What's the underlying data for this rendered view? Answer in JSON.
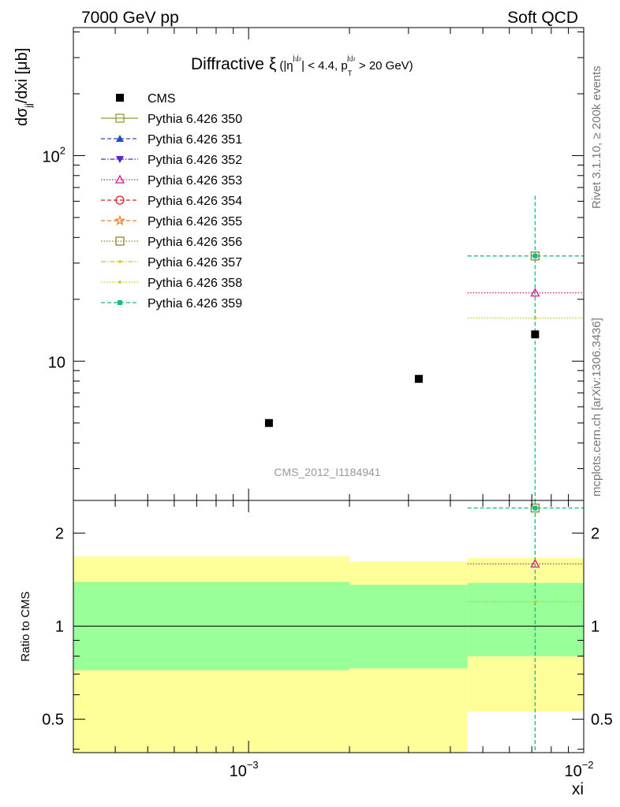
{
  "header": {
    "left": "7000 GeV pp",
    "right": "Soft QCD"
  },
  "side": {
    "rivet": "Rivet 3.1.10, ≥ 200k events",
    "mcplots": "mcplots.cern.ch [arXiv:1306.3436]"
  },
  "chart_data": [
    {
      "type": "scatter",
      "title": {
        "main": "Diffractive",
        "xi": "ξ",
        "open": "(|η",
        "eta_sup": "j₁j₂",
        "mid": "| < 4.4, p",
        "pt_sub": "T",
        "pt_sup": "j₁j₂",
        "end": " > 20 GeV)"
      },
      "ylabel": {
        "d": "dσ",
        "sub": "jj",
        "rest": "/dxi [μb]"
      },
      "xscale": "log",
      "yscale": "log",
      "xlim": [
        0.0003,
        0.01
      ],
      "ylim": [
        2.1,
        420
      ],
      "yticks": [
        {
          "value": 100,
          "base": "10",
          "exp": "2"
        },
        {
          "value": 10,
          "base": "10",
          "exp": ""
        }
      ],
      "watermark": "CMS_2012_I1184941",
      "legend_position": "top-left",
      "series": [
        {
          "name": "CMS",
          "marker": "filled-square",
          "color": "#000000",
          "style": "none",
          "points": [
            {
              "x": 0.00115,
              "y": 5.0
            },
            {
              "x": 0.00322,
              "y": 8.2
            },
            {
              "x": 0.00716,
              "y": 13.5
            }
          ]
        },
        {
          "name": "Pythia 6.426 350",
          "marker": "open-square",
          "color": "#999933",
          "style": "solid",
          "points": []
        },
        {
          "name": "Pythia 6.426 351",
          "marker": "filled-triangle-up",
          "color": "#1f4fbf",
          "style": "dashed",
          "points": []
        },
        {
          "name": "Pythia 6.426 352",
          "marker": "filled-triangle-down",
          "color": "#5522cc",
          "style": "dashdot",
          "points": []
        },
        {
          "name": "Pythia 6.426 353",
          "marker": "open-triangle-up",
          "color": "#cc2288",
          "style": "dotted",
          "points": [
            {
              "x": 0.00716,
              "y": 21.5,
              "xlo": 0.0045,
              "xhi": 0.01
            }
          ]
        },
        {
          "name": "Pythia 6.426 354",
          "marker": "open-circle",
          "color": "#dd2222",
          "style": "dashed",
          "points": []
        },
        {
          "name": "Pythia 6.426 355",
          "marker": "open-star",
          "color": "#ee7722",
          "style": "dashed",
          "points": []
        },
        {
          "name": "Pythia 6.426 356",
          "marker": "open-square",
          "color": "#888822",
          "style": "dotted",
          "points": []
        },
        {
          "name": "Pythia 6.426 357",
          "marker": "small-dot",
          "color": "#cccc00",
          "style": "dashdot",
          "points": []
        },
        {
          "name": "Pythia 6.426 358",
          "marker": "small-dot",
          "color": "#bbcc22",
          "style": "dotted",
          "points": [
            {
              "x": 0.00716,
              "y": 16.2,
              "xlo": 0.0045,
              "xhi": 0.01
            }
          ]
        },
        {
          "name": "Pythia 6.426 359",
          "marker": "filled-square-small",
          "color": "#11bb88",
          "style": "dashed",
          "points": [
            {
              "x": 0.00716,
              "y": 32.5,
              "xlo": 0.0045,
              "xhi": 0.01,
              "ylo": 0.5,
              "yhi": 65
            }
          ]
        }
      ]
    },
    {
      "type": "scatter",
      "ylabel": "Ratio to CMS",
      "xlabel": "xi",
      "xscale": "log",
      "yscale": "log",
      "xlim": [
        0.0003,
        0.01
      ],
      "ylim": [
        0.39,
        2.55
      ],
      "yticks": [
        {
          "value": 2,
          "label": "2"
        },
        {
          "value": 1,
          "label": "1"
        },
        {
          "value": 0.5,
          "label": "0.5"
        }
      ],
      "xticks": [
        {
          "value": 0.001,
          "base": "10",
          "exp": "−3"
        },
        {
          "value": 0.01,
          "base": "10",
          "exp": "−2"
        }
      ],
      "bands": [
        {
          "xlo": 0.0003,
          "xhi": 0.002,
          "yellow": [
            0.3,
            1.68
          ],
          "green": [
            0.72,
            1.39
          ]
        },
        {
          "xlo": 0.002,
          "xhi": 0.0045,
          "yellow": [
            0.3,
            1.62
          ],
          "green": [
            0.73,
            1.36
          ]
        },
        {
          "xlo": 0.0045,
          "xhi": 0.01,
          "yellow": [
            0.53,
            1.66
          ],
          "green": [
            0.8,
            1.38
          ]
        }
      ],
      "ratios": [
        {
          "series": "Pythia 6.426 353",
          "x": 0.00716,
          "y": 1.59,
          "xlo": 0.0045,
          "xhi": 0.01
        },
        {
          "series": "Pythia 6.426 358",
          "x": 0.00716,
          "y": 1.2,
          "xlo": 0.0045,
          "xhi": 0.01
        },
        {
          "series": "Pythia 6.426 359",
          "x": 0.00716,
          "y": 2.41,
          "xlo": 0.0045,
          "xhi": 0.01
        }
      ]
    }
  ]
}
